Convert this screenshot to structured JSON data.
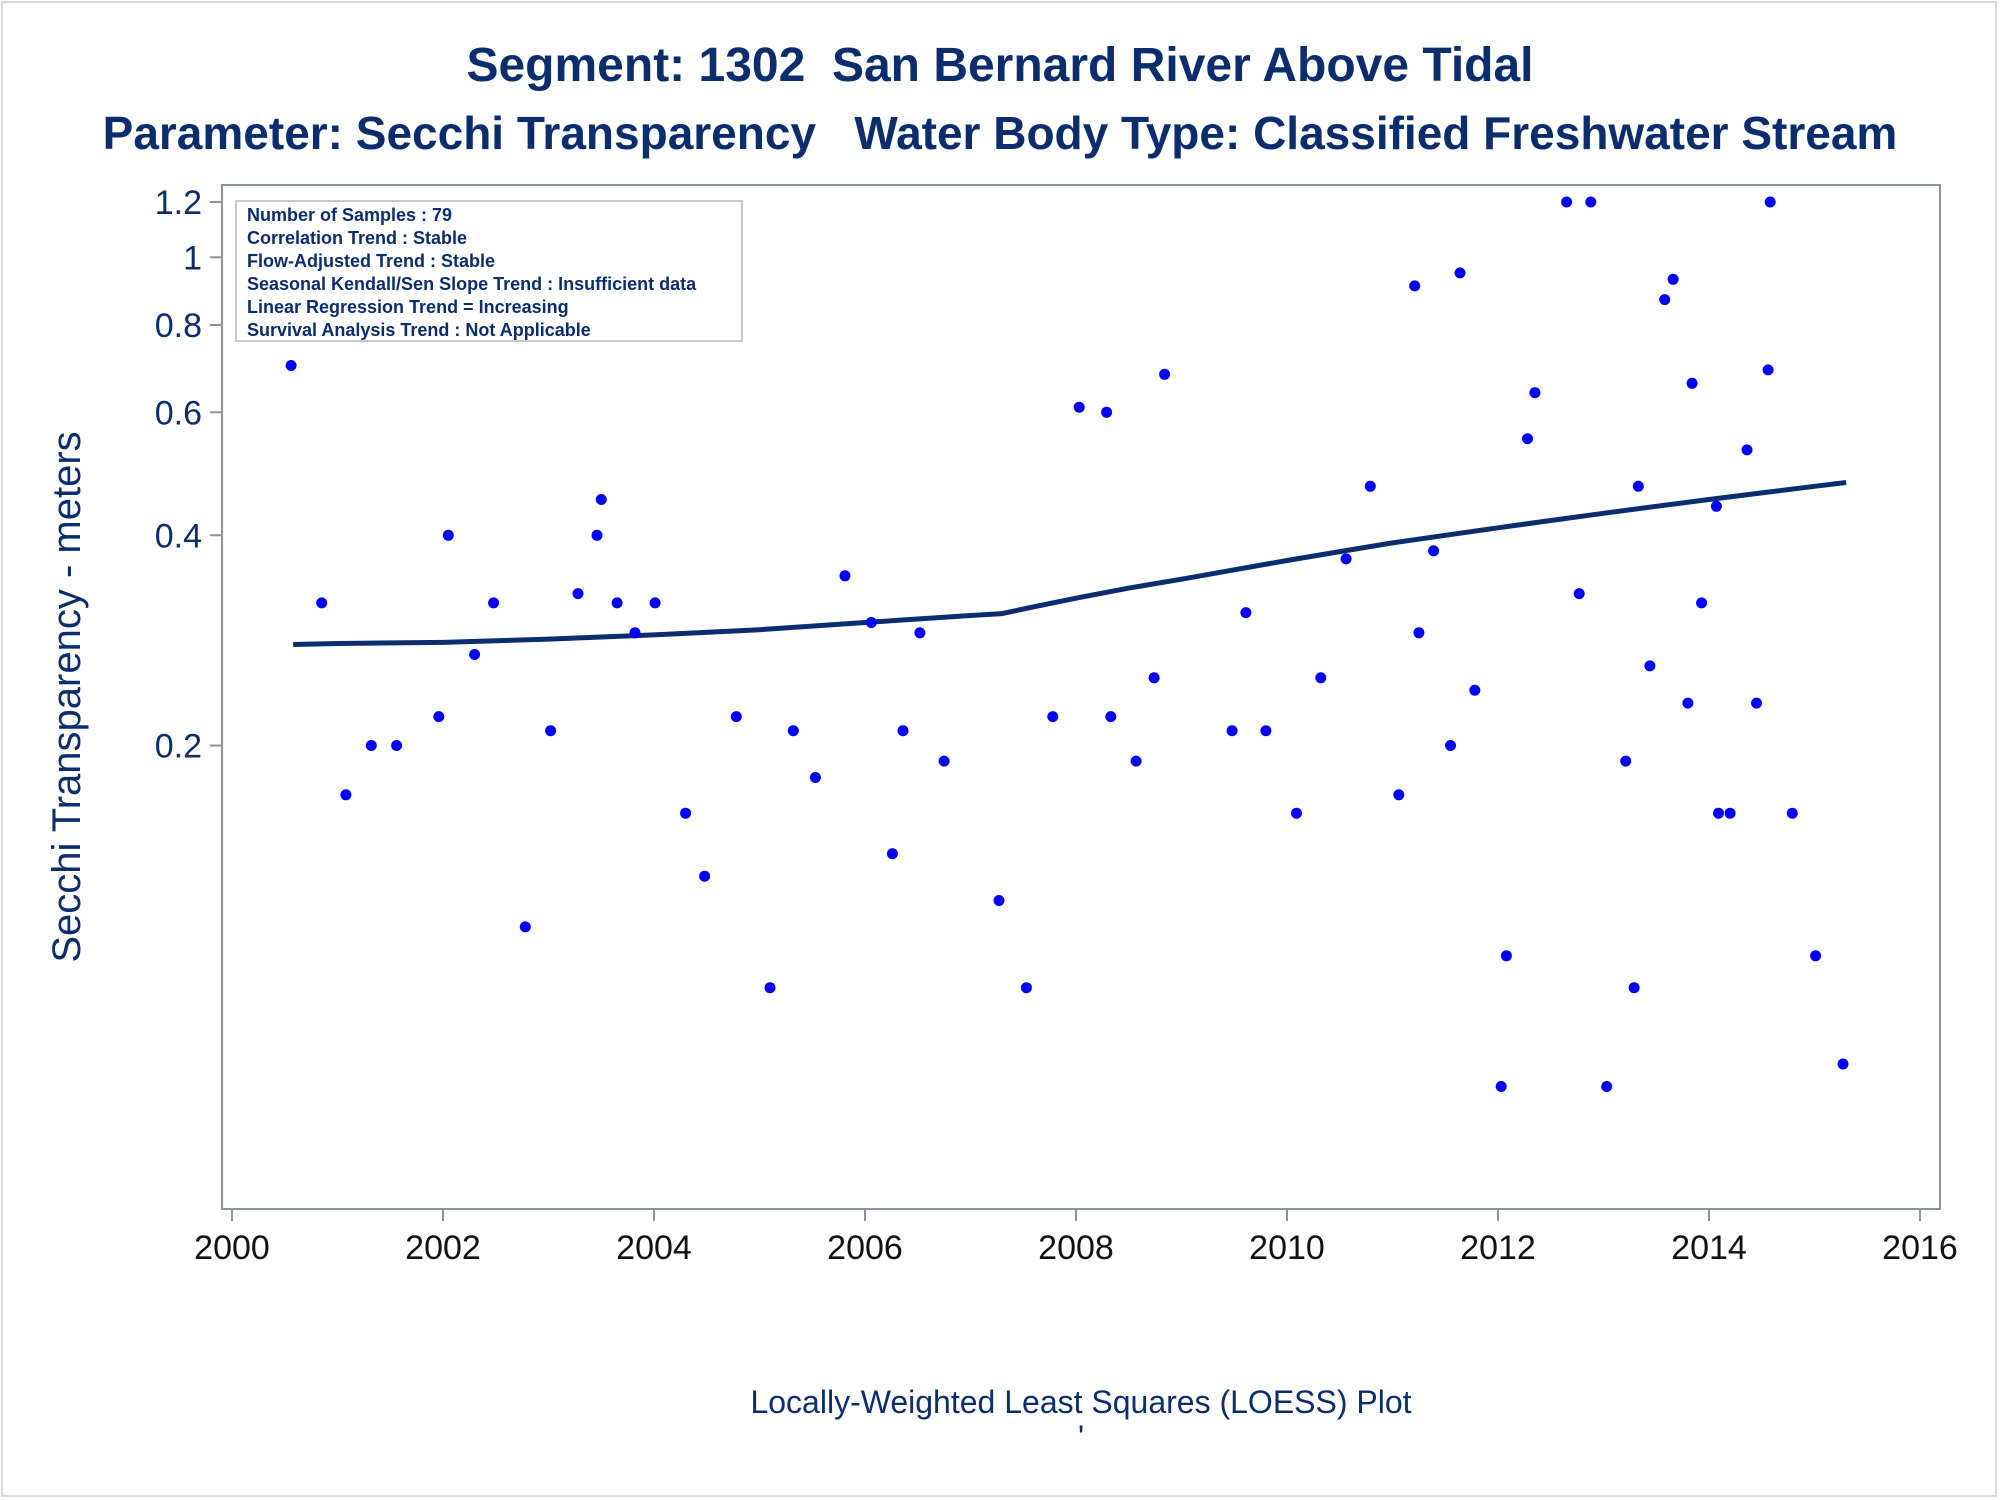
{
  "titles": {
    "line1": "Segment: 1302  San Bernard River Above Tidal",
    "line2": "Parameter: Secchi Transparency   Water Body Type: Classified Freshwater Stream"
  },
  "footnote": "'",
  "colors": {
    "title": "#0b2d6e",
    "points": "#0000ff",
    "loess": "#0b2d6e",
    "axis": "#8c9299",
    "frame": "#d9d9d9"
  },
  "chart_data": {
    "type": "scatter",
    "xlabel": "Locally-Weighted Least Squares (LOESS) Plot",
    "ylabel": "Secchi Transparency - meters",
    "x_ticks": [
      "2000",
      "2002",
      "2004",
      "2006",
      "2008",
      "2010",
      "2012",
      "2014",
      "2016"
    ],
    "y_ticks": [
      "0.2",
      "0.4",
      "0.6",
      "0.8",
      "1",
      "1.2"
    ],
    "y_scale": "log",
    "xlim": [
      2000,
      2016
    ],
    "ylim": [
      0.045,
      1.2
    ],
    "grid": false,
    "legend_placement": "top-left",
    "info_box": [
      "Number of Samples : 79",
      "Correlation Trend : Stable",
      "Flow-Adjusted Trend : Stable",
      "Seasonal Kendall/Sen Slope Trend : Insufficient data",
      "Linear Regression Trend = Increasing",
      "Survival Analysis Trend : Not Applicable"
    ],
    "series": [
      {
        "type": "scatter",
        "points": [
          [
            2000.56,
            0.7
          ],
          [
            2000.85,
            0.32
          ],
          [
            2001.08,
            0.17
          ],
          [
            2001.32,
            0.2
          ],
          [
            2001.56,
            0.2
          ],
          [
            2001.96,
            0.22
          ],
          [
            2002.05,
            0.4
          ],
          [
            2002.3,
            0.27
          ],
          [
            2002.48,
            0.32
          ],
          [
            2002.78,
            0.11
          ],
          [
            2003.02,
            0.21
          ],
          [
            2003.28,
            0.33
          ],
          [
            2003.46,
            0.4
          ],
          [
            2003.5,
            0.45
          ],
          [
            2003.65,
            0.32
          ],
          [
            2003.82,
            0.29
          ],
          [
            2004.01,
            0.32
          ],
          [
            2004.3,
            0.16
          ],
          [
            2004.48,
            0.13
          ],
          [
            2004.78,
            0.22
          ],
          [
            2005.1,
            0.09
          ],
          [
            2005.32,
            0.21
          ],
          [
            2005.53,
            0.18
          ],
          [
            2005.81,
            0.35
          ],
          [
            2006.06,
            0.3
          ],
          [
            2006.26,
            0.14
          ],
          [
            2006.36,
            0.21
          ],
          [
            2006.52,
            0.29
          ],
          [
            2006.75,
            0.19
          ],
          [
            2007.27,
            0.12
          ],
          [
            2007.53,
            0.09
          ],
          [
            2007.78,
            0.22
          ],
          [
            2008.03,
            0.61
          ],
          [
            2008.29,
            0.6
          ],
          [
            2008.33,
            0.22
          ],
          [
            2008.57,
            0.19
          ],
          [
            2008.74,
            0.25
          ],
          [
            2008.84,
            0.68
          ],
          [
            2009.48,
            0.21
          ],
          [
            2009.61,
            0.31
          ],
          [
            2009.8,
            0.21
          ],
          [
            2010.09,
            0.16
          ],
          [
            2010.32,
            0.25
          ],
          [
            2010.56,
            0.37
          ],
          [
            2010.79,
            0.47
          ],
          [
            2011.06,
            0.17
          ],
          [
            2011.21,
            0.91
          ],
          [
            2011.25,
            0.29
          ],
          [
            2011.39,
            0.38
          ],
          [
            2011.55,
            0.2
          ],
          [
            2011.64,
            0.95
          ],
          [
            2011.78,
            0.24
          ],
          [
            2012.03,
            0.065
          ],
          [
            2012.08,
            0.1
          ],
          [
            2012.28,
            0.55
          ],
          [
            2012.35,
            0.64
          ],
          [
            2012.65,
            1.2
          ],
          [
            2012.77,
            0.33
          ],
          [
            2012.88,
            1.2
          ],
          [
            2013.03,
            0.065
          ],
          [
            2013.21,
            0.19
          ],
          [
            2013.29,
            0.09
          ],
          [
            2013.33,
            0.47
          ],
          [
            2013.44,
            0.26
          ],
          [
            2013.58,
            0.87
          ],
          [
            2013.66,
            0.93
          ],
          [
            2013.8,
            0.23
          ],
          [
            2013.84,
            0.66
          ],
          [
            2013.93,
            0.32
          ],
          [
            2014.07,
            0.44
          ],
          [
            2014.09,
            0.16
          ],
          [
            2014.2,
            0.16
          ],
          [
            2014.36,
            0.53
          ],
          [
            2014.45,
            0.23
          ],
          [
            2014.56,
            0.69
          ],
          [
            2014.58,
            1.2
          ],
          [
            2014.79,
            0.16
          ],
          [
            2015.01,
            0.1
          ],
          [
            2015.27,
            0.07
          ]
        ]
      },
      {
        "type": "line",
        "points": [
          [
            2000.58,
            0.279
          ],
          [
            2001.0,
            0.28
          ],
          [
            2002.0,
            0.281
          ],
          [
            2003.0,
            0.284
          ],
          [
            2004.0,
            0.288
          ],
          [
            2005.0,
            0.293
          ],
          [
            2006.0,
            0.3
          ],
          [
            2007.0,
            0.307
          ],
          [
            2007.3,
            0.309
          ],
          [
            2007.6,
            0.316
          ],
          [
            2008.0,
            0.325
          ],
          [
            2008.5,
            0.336
          ],
          [
            2009.0,
            0.346
          ],
          [
            2009.5,
            0.357
          ],
          [
            2010.0,
            0.368
          ],
          [
            2010.5,
            0.379
          ],
          [
            2011.0,
            0.39
          ],
          [
            2011.5,
            0.4
          ],
          [
            2012.0,
            0.41
          ],
          [
            2012.5,
            0.42
          ],
          [
            2013.0,
            0.43
          ],
          [
            2013.5,
            0.44
          ],
          [
            2014.0,
            0.45
          ],
          [
            2014.5,
            0.46
          ],
          [
            2015.0,
            0.47
          ],
          [
            2015.3,
            0.476
          ]
        ]
      }
    ]
  }
}
